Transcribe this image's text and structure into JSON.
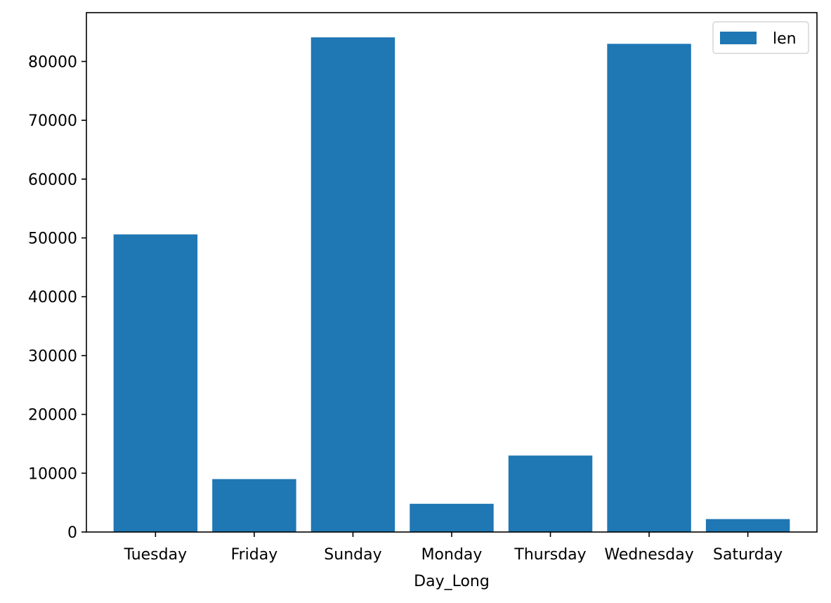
{
  "chart_data": {
    "type": "bar",
    "categories": [
      "Tuesday",
      "Friday",
      "Sunday",
      "Monday",
      "Thursday",
      "Wednesday",
      "Saturday"
    ],
    "series": [
      {
        "name": "len",
        "values": [
          50600,
          9000,
          84100,
          4800,
          13000,
          83000,
          2200
        ],
        "color": "#1f77b4"
      }
    ],
    "title": "",
    "xlabel": "Day_Long",
    "ylabel": "",
    "ylim": [
      0,
      88300
    ],
    "yticks": [
      0,
      10000,
      20000,
      30000,
      40000,
      50000,
      60000,
      70000,
      80000
    ],
    "grid": false,
    "legend_position": "top-right"
  }
}
